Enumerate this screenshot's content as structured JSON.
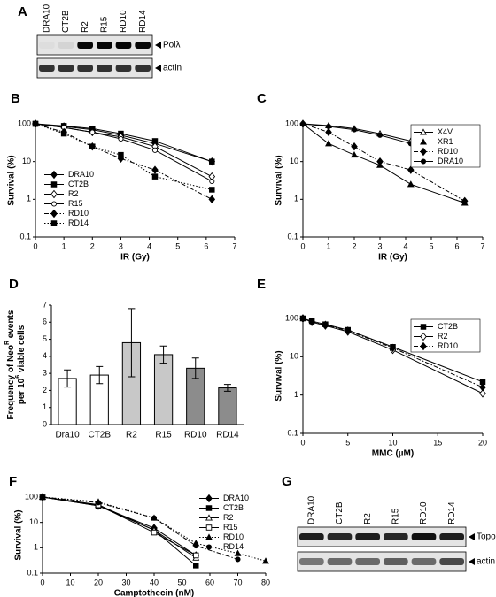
{
  "panel_labels": [
    "A",
    "B",
    "C",
    "D",
    "E",
    "F",
    "G"
  ],
  "blots": [
    {
      "lanes": [
        "DRA10",
        "CT2B",
        "R2",
        "R15",
        "RD10",
        "RD14"
      ],
      "bands": [
        "Polλ",
        "actin"
      ]
    },
    {
      "lanes": [
        "DRA10",
        "CT2B",
        "R2",
        "R15",
        "RD10",
        "RD14"
      ],
      "bands": [
        "Topo I",
        "actin"
      ]
    }
  ],
  "chart_data": [
    {
      "type": "line",
      "xlabel": "IR (Gy)",
      "ylabel": "Survival (%)",
      "log_y": true,
      "legend": "lower left",
      "xlim": [
        0,
        7
      ],
      "xticks": [
        0,
        1,
        2,
        3,
        4,
        5,
        6,
        7
      ],
      "ylim": [
        0.1,
        100
      ],
      "yticks": [
        0.1,
        1,
        10,
        100
      ],
      "x": [
        0,
        1,
        2,
        3,
        4.2,
        6.2
      ],
      "series": [
        {
          "name": "DRA10",
          "color": "#000000",
          "marker": "diamond",
          "linestyle": "solid",
          "values": [
            100,
            85,
            70,
            50,
            30,
            10
          ]
        },
        {
          "name": "CT2B",
          "color": "#000000",
          "marker": "square",
          "linestyle": "solid",
          "values": [
            100,
            88,
            75,
            55,
            35,
            10
          ]
        },
        {
          "name": "R2",
          "color": "#000000",
          "marker": "diamond-open",
          "linestyle": "solid",
          "values": [
            100,
            80,
            60,
            45,
            25,
            4
          ]
        },
        {
          "name": "R15",
          "color": "#000000",
          "marker": "circle-open",
          "linestyle": "solid",
          "values": [
            100,
            80,
            60,
            40,
            20,
            3
          ]
        },
        {
          "name": "RD10",
          "color": "#000000",
          "marker": "diamond",
          "linestyle": "dash-dot",
          "values": [
            100,
            60,
            25,
            12,
            6,
            1
          ]
        },
        {
          "name": "RD14",
          "color": "#000000",
          "marker": "square",
          "linestyle": "dotted",
          "values": [
            100,
            55,
            25,
            15,
            4,
            1.8
          ]
        }
      ]
    },
    {
      "type": "line",
      "xlabel": "IR (Gy)",
      "ylabel": "Survival (%)",
      "log_y": true,
      "legend": "upper right",
      "xlim": [
        0,
        7
      ],
      "xticks": [
        0,
        1,
        2,
        3,
        4,
        5,
        6,
        7
      ],
      "ylim": [
        0.1,
        100
      ],
      "yticks": [
        0.1,
        1,
        10,
        100
      ],
      "x": [
        0,
        1,
        2,
        3,
        4.2,
        6.3
      ],
      "series": [
        {
          "name": "X4V",
          "color": "#000000",
          "marker": "triangle-open",
          "linestyle": "solid",
          "values": [
            100,
            90,
            75,
            55,
            35,
            10
          ]
        },
        {
          "name": "XR1",
          "color": "#000000",
          "marker": "triangle",
          "linestyle": "solid",
          "values": [
            100,
            30,
            15,
            8,
            2.5,
            0.8
          ]
        },
        {
          "name": "RD10",
          "color": "#000000",
          "marker": "diamond",
          "linestyle": "dash-dot",
          "values": [
            100,
            60,
            25,
            10,
            6,
            0.9
          ]
        },
        {
          "name": "DRA10",
          "color": "#000000",
          "marker": "circle",
          "linestyle": "solid",
          "values": [
            100,
            85,
            70,
            50,
            30,
            9
          ]
        }
      ]
    },
    {
      "type": "bar",
      "ylabel": [
        [
          "Frequency of Neo",
          "R",
          " events"
        ],
        [
          "per 10",
          "6",
          " viable cells"
        ]
      ],
      "ylim": [
        0,
        7
      ],
      "yticks": [
        0,
        1,
        2,
        3,
        4,
        5,
        6,
        7
      ],
      "categories": [
        "Dra10",
        "CT2B",
        "R2",
        "R15",
        "RD10",
        "RD14"
      ],
      "values": [
        2.7,
        2.9,
        4.8,
        4.1,
        3.3,
        2.15
      ],
      "errors": [
        0.5,
        0.5,
        2,
        0.5,
        0.6,
        0.2
      ],
      "colors": [
        "#ffffff",
        "#ffffff",
        "#c8c8c8",
        "#c8c8c8",
        "#8c8c8c",
        "#8c8c8c"
      ]
    },
    {
      "type": "line",
      "xlabel": "MMC (µM)",
      "ylabel": "Survival (%)",
      "log_y": true,
      "legend": "upper right",
      "xlim": [
        0,
        20
      ],
      "xticks": [
        0,
        5,
        10,
        15,
        20
      ],
      "ylim": [
        0.1,
        100
      ],
      "yticks": [
        0.1,
        1,
        10,
        100
      ],
      "x": [
        0,
        1,
        2.5,
        5,
        10,
        20
      ],
      "series": [
        {
          "name": "CT2B",
          "color": "#000000",
          "marker": "square",
          "linestyle": "solid",
          "values": [
            100,
            85,
            70,
            50,
            18,
            2.2
          ]
        },
        {
          "name": "R2",
          "color": "#000000",
          "marker": "diamond-open",
          "linestyle": "solid",
          "values": [
            100,
            80,
            65,
            45,
            15,
            1.1
          ]
        },
        {
          "name": "RD10",
          "color": "#000000",
          "marker": "diamond",
          "linestyle": "dash-dot",
          "values": [
            100,
            82,
            68,
            48,
            17,
            1.6
          ]
        }
      ]
    },
    {
      "type": "line",
      "xlabel": "Camptothecin (nM)",
      "ylabel": "Survival (%)",
      "log_y": true,
      "legend": "right",
      "xlim": [
        0,
        80
      ],
      "xticks": [
        0,
        10,
        20,
        30,
        40,
        50,
        60,
        70,
        80
      ],
      "ylim": [
        0.1,
        100
      ],
      "yticks": [
        0.1,
        1,
        10,
        100
      ],
      "series": [
        {
          "name": "DRA10",
          "color": "#000000",
          "marker": "diamond",
          "linestyle": "solid",
          "x": [
            0,
            20,
            40,
            55
          ],
          "values": [
            100,
            45,
            6,
            0.5
          ]
        },
        {
          "name": "CT2B",
          "color": "#000000",
          "marker": "square",
          "linestyle": "solid",
          "x": [
            0,
            20,
            40,
            55
          ],
          "values": [
            100,
            45,
            5,
            0.2
          ]
        },
        {
          "name": "R2",
          "color": "#000000",
          "marker": "triangle-open",
          "linestyle": "solid",
          "x": [
            0,
            20,
            40,
            55
          ],
          "values": [
            100,
            50,
            5,
            0.4
          ]
        },
        {
          "name": "R15",
          "color": "#000000",
          "marker": "square-open",
          "linestyle": "solid",
          "x": [
            0,
            20,
            40,
            55
          ],
          "values": [
            100,
            48,
            4,
            0.5
          ]
        },
        {
          "name": "RD10",
          "color": "#000000",
          "marker": "triangle",
          "linestyle": "dotted",
          "x": [
            0,
            20,
            40,
            55,
            70,
            80
          ],
          "values": [
            100,
            65,
            15,
            1.5,
            0.6,
            0.3
          ]
        },
        {
          "name": "RD14",
          "color": "#000000",
          "marker": "circle",
          "linestyle": "dash-dot",
          "x": [
            0,
            20,
            40,
            55,
            70
          ],
          "values": [
            100,
            60,
            15,
            1.2,
            0.35
          ]
        }
      ]
    }
  ]
}
